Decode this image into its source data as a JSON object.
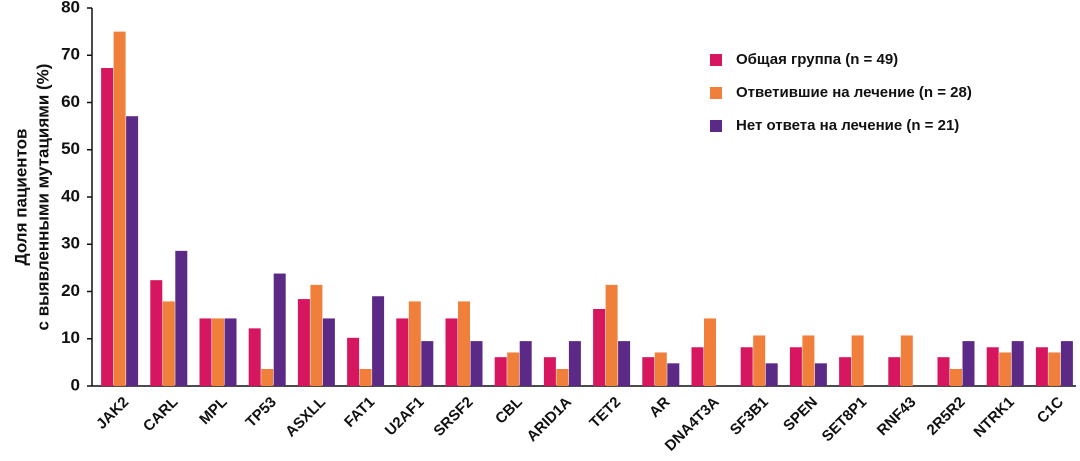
{
  "chart_data": {
    "type": "bar",
    "ylabel": [
      "Доля пациентов",
      "с выявленными мутациями (%)"
    ],
    "categories": [
      "JAK2",
      "CARL",
      "MPL",
      "TP53",
      "ASXLL",
      "FAT1",
      "U2AF1",
      "SRSF2",
      "CBL",
      "ARID1A",
      "TET2",
      "AR",
      "DNA4T3A",
      "SF3B1",
      "SPEN",
      "SET8P1",
      "RNF43",
      "2R5R2",
      "NTRK1",
      "C1C"
    ],
    "series": [
      {
        "name": "Общая группа (n = 49)",
        "color": "#d6175f",
        "values": [
          67.3,
          22.4,
          14.3,
          12.2,
          18.4,
          10.2,
          14.3,
          14.3,
          6.1,
          6.1,
          16.3,
          6.1,
          8.2,
          8.2,
          8.2,
          6.1,
          6.1,
          6.1,
          8.2,
          8.2
        ]
      },
      {
        "name": "Ответившие на лечение (n = 28)",
        "color": "#f07f3c",
        "values": [
          75,
          17.9,
          14.3,
          3.6,
          21.4,
          3.6,
          17.9,
          17.9,
          7.1,
          3.6,
          21.4,
          7.1,
          14.3,
          10.7,
          10.7,
          10.7,
          10.7,
          3.6,
          7.1,
          7.1
        ]
      },
      {
        "name": "Нет ответа на лечение (n = 21)",
        "color": "#5b2a86",
        "values": [
          57.1,
          28.6,
          14.3,
          23.8,
          14.3,
          19.0,
          9.5,
          9.5,
          9.5,
          9.5,
          9.5,
          4.8,
          0,
          4.8,
          4.8,
          0,
          0,
          9.5,
          9.5,
          9.5
        ]
      }
    ],
    "ylim": [
      0,
      80
    ],
    "yticks": [
      0,
      10,
      20,
      30,
      40,
      50,
      60,
      70,
      80
    ],
    "legend": "upper right"
  }
}
